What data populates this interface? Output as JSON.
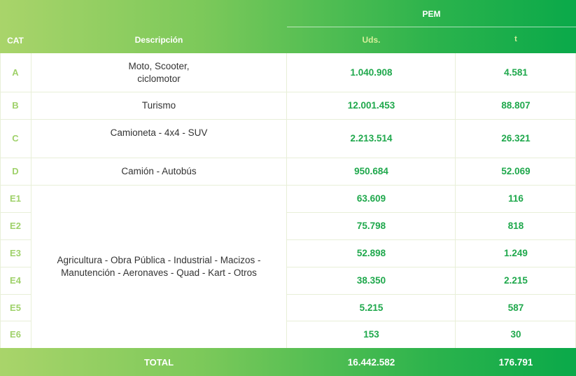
{
  "header": {
    "cat": "CAT",
    "descripcion": "Descripción",
    "pem": "PEM",
    "uds": "Uds.",
    "t": "t"
  },
  "rows": [
    {
      "cat": "A",
      "desc_line1": "Moto, Scooter,",
      "desc_line2": "ciclomotor",
      "uds": "1.040.908",
      "t": "4.581"
    },
    {
      "cat": "B",
      "desc_line1": "Turismo",
      "desc_line2": "",
      "uds": "12.001.453",
      "t": "88.807"
    },
    {
      "cat": "C",
      "desc_line1": "Camioneta - 4x4 - SUV",
      "desc_line2": "",
      "uds": "2.213.514",
      "t": "26.321"
    },
    {
      "cat": "D",
      "desc_line1": "Camión - Autobús",
      "desc_line2": "",
      "uds": "950.684",
      "t": "52.069"
    },
    {
      "cat": "E1",
      "uds": "63.609",
      "t": "116"
    },
    {
      "cat": "E2",
      "uds": "75.798",
      "t": "818"
    },
    {
      "cat": "E3",
      "uds": "52.898",
      "t": "1.249"
    },
    {
      "cat": "E4",
      "uds": "38.350",
      "t": "2.215"
    },
    {
      "cat": "E5",
      "uds": "5.215",
      "t": "587"
    },
    {
      "cat": "E6",
      "uds": "153",
      "t": "30"
    }
  ],
  "group_e_desc": {
    "line1": "Agricultura - Obra Pública - Industrial - Macizos -",
    "line2": "Manutención - Aeronaves - Quad - Kart - Otros"
  },
  "total": {
    "label": "TOTAL",
    "uds": "16.442.582",
    "t": "176.791"
  }
}
